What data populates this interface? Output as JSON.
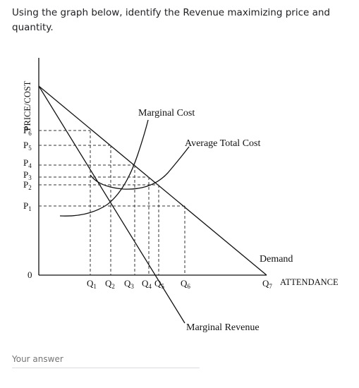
{
  "question": {
    "text": "Using the graph below, identify the Revenue maximizing price and quantity."
  },
  "graph": {
    "y_axis_label": "PRICE/COST",
    "origin_label": "0",
    "x_axis_label": "ATTENDANCE",
    "price_labels": [
      {
        "main": "P",
        "sub": "6"
      },
      {
        "main": "P",
        "sub": "5"
      },
      {
        "main": "P",
        "sub": "4"
      },
      {
        "main": "P",
        "sub": "3"
      },
      {
        "main": "P",
        "sub": "2"
      },
      {
        "main": "P",
        "sub": "1"
      }
    ],
    "quantity_labels": [
      {
        "main": "Q",
        "sub": "1"
      },
      {
        "main": "Q",
        "sub": "2"
      },
      {
        "main": "Q",
        "sub": "3"
      },
      {
        "main": "Q",
        "sub": "4"
      },
      {
        "main": "Q",
        "sub": "5"
      },
      {
        "main": "Q",
        "sub": "6"
      }
    ],
    "q7_label": {
      "main": "Q",
      "sub": "7"
    },
    "curve_labels": {
      "marginal_cost": "Marginal Cost",
      "average_total_cost": "Average Total Cost",
      "demand": "Demand",
      "marginal_revenue": "Marginal Revenue"
    }
  },
  "answer": {
    "placeholder": "Your answer"
  }
}
